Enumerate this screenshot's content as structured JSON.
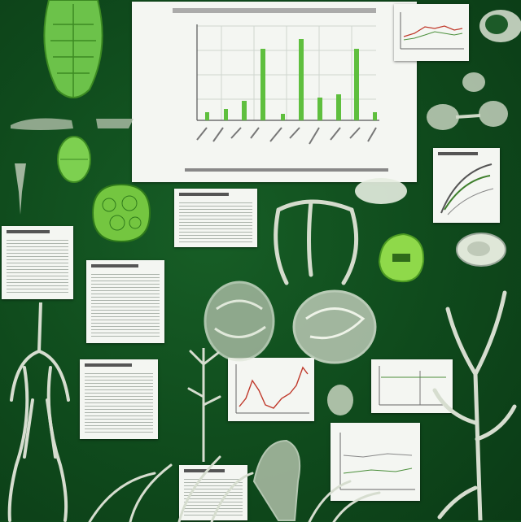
{
  "scene": {
    "background_color": "#0f4a1c",
    "accent_green": "#6cc24a",
    "specimen_color": "#cfd8c8"
  }
}
